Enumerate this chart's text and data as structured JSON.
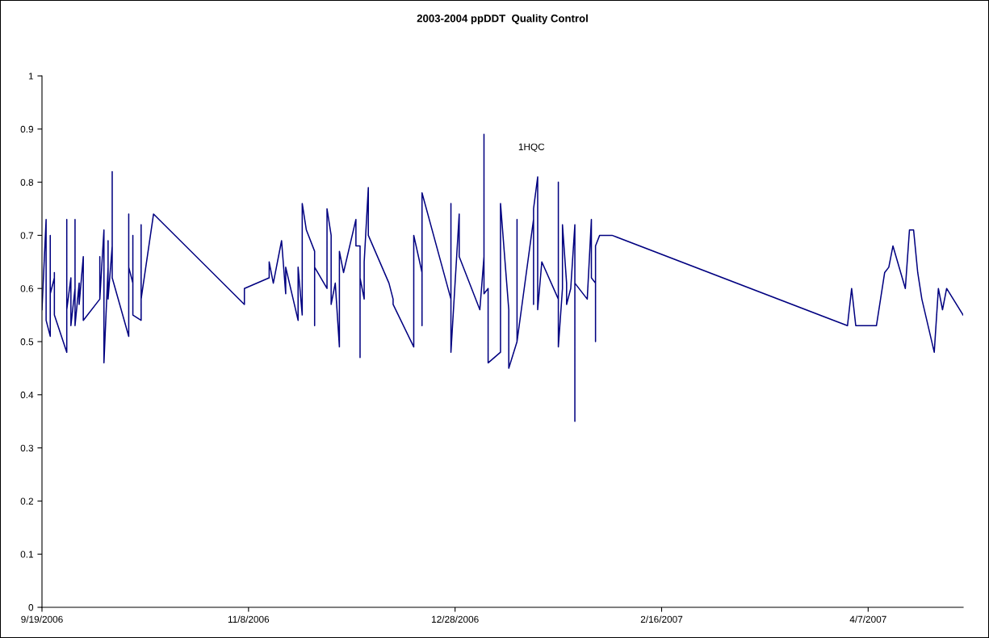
{
  "chart_data": {
    "type": "line",
    "title": "2003-2004 ppDDT  Quality Control",
    "x": [
      "2006-09-19",
      "2006-09-20",
      "2006-09-20",
      "2006-09-21",
      "2006-09-21",
      "2006-09-21",
      "2006-09-22",
      "2006-09-22",
      "2006-09-22",
      "2006-09-25",
      "2006-09-25",
      "2006-09-25",
      "2006-09-26",
      "2006-09-26",
      "2006-09-27",
      "2006-09-27",
      "2006-09-27",
      "2006-09-28",
      "2006-09-28",
      "2006-09-29",
      "2006-09-29",
      "2006-10-03",
      "2006-10-03",
      "2006-10-03",
      "2006-10-04",
      "2006-10-04",
      "2006-10-05",
      "2006-10-05",
      "2006-10-05",
      "2006-10-06",
      "2006-10-06",
      "2006-10-06",
      "2006-10-10",
      "2006-10-10",
      "2006-10-10",
      "2006-10-11",
      "2006-10-11",
      "2006-10-11",
      "2006-10-13",
      "2006-10-13",
      "2006-10-13",
      "2006-10-16",
      "2006-11-07",
      "2006-11-07",
      "2006-11-13",
      "2006-11-13",
      "2006-11-14",
      "2006-11-16",
      "2006-11-17",
      "2006-11-17",
      "2006-11-20",
      "2006-11-20",
      "2006-11-21",
      "2006-11-21",
      "2006-11-22",
      "2006-11-24",
      "2006-11-24",
      "2006-11-24",
      "2006-11-27",
      "2006-11-27",
      "2006-11-28",
      "2006-11-28",
      "2006-11-29",
      "2006-11-30",
      "2006-11-30",
      "2006-12-01",
      "2006-12-04",
      "2006-12-04",
      "2006-12-05",
      "2006-12-05",
      "2006-12-05",
      "2006-12-06",
      "2006-12-06",
      "2006-12-07",
      "2006-12-07",
      "2006-12-12",
      "2006-12-13",
      "2006-12-13",
      "2006-12-18",
      "2006-12-18",
      "2006-12-20",
      "2006-12-20",
      "2006-12-20",
      "2006-12-27",
      "2006-12-27",
      "2006-12-27",
      "2006-12-29",
      "2006-12-29",
      "2007-01-03",
      "2007-01-04",
      "2007-01-04",
      "2007-01-04",
      "2007-01-05",
      "2007-01-05",
      "2007-01-08",
      "2007-01-08",
      "2007-01-10",
      "2007-01-10",
      "2007-01-12",
      "2007-01-12",
      "2007-01-12",
      "2007-01-16",
      "2007-01-16",
      "2007-01-16",
      "2007-01-17",
      "2007-01-17",
      "2007-01-18",
      "2007-01-22",
      "2007-01-22",
      "2007-01-22",
      "2007-01-23",
      "2007-01-23",
      "2007-01-24",
      "2007-01-24",
      "2007-01-25",
      "2007-01-26",
      "2007-01-26",
      "2007-01-26",
      "2007-01-29",
      "2007-01-30",
      "2007-01-30",
      "2007-01-31",
      "2007-01-31",
      "2007-01-31",
      "2007-02-01",
      "2007-02-04",
      "2007-04-02",
      "2007-04-03",
      "2007-04-04",
      "2007-04-09",
      "2007-04-10",
      "2007-04-11",
      "2007-04-12",
      "2007-04-13",
      "2007-04-16",
      "2007-04-17",
      "2007-04-18",
      "2007-04-19",
      "2007-04-20",
      "2007-04-23",
      "2007-04-24",
      "2007-04-25",
      "2007-04-26",
      "2007-04-30"
    ],
    "series": [
      {
        "color": "#000080",
        "values": [
          0.56,
          0.73,
          0.54,
          0.51,
          0.7,
          0.59,
          0.62,
          0.63,
          0.55,
          0.48,
          0.73,
          0.56,
          0.62,
          0.53,
          0.6,
          0.73,
          0.53,
          0.61,
          0.57,
          0.66,
          0.54,
          0.58,
          0.66,
          0.58,
          0.71,
          0.46,
          0.64,
          0.69,
          0.58,
          0.68,
          0.82,
          0.62,
          0.51,
          0.74,
          0.64,
          0.61,
          0.7,
          0.55,
          0.54,
          0.72,
          0.58,
          0.74,
          0.57,
          0.6,
          0.62,
          0.65,
          0.61,
          0.69,
          0.59,
          0.64,
          0.54,
          0.64,
          0.55,
          0.76,
          0.71,
          0.67,
          0.53,
          0.64,
          0.6,
          0.75,
          0.7,
          0.57,
          0.61,
          0.49,
          0.67,
          0.63,
          0.73,
          0.68,
          0.68,
          0.47,
          0.62,
          0.58,
          0.65,
          0.79,
          0.7,
          0.61,
          0.58,
          0.57,
          0.49,
          0.7,
          0.63,
          0.53,
          0.78,
          0.58,
          0.76,
          0.48,
          0.74,
          0.66,
          0.56,
          0.66,
          0.89,
          0.59,
          0.6,
          0.46,
          0.48,
          0.76,
          0.56,
          0.45,
          0.5,
          0.73,
          0.5,
          0.73,
          0.57,
          0.75,
          0.81,
          0.56,
          0.65,
          0.58,
          0.8,
          0.49,
          0.6,
          0.72,
          0.61,
          0.57,
          0.6,
          0.72,
          0.35,
          0.61,
          0.58,
          0.73,
          0.62,
          0.61,
          0.5,
          0.68,
          0.7,
          0.7,
          0.53,
          0.6,
          0.53,
          0.53,
          0.58,
          0.63,
          0.64,
          0.68,
          0.6,
          0.71,
          0.71,
          0.63,
          0.58,
          0.48,
          0.6,
          0.56,
          0.6,
          0.55
        ]
      }
    ],
    "xlim": [
      "2006-09-19",
      "2007-04-30"
    ],
    "xticks": [
      {
        "value": "2006-09-19",
        "label": "9/19/2006"
      },
      {
        "value": "2006-11-08",
        "label": "11/8/2006"
      },
      {
        "value": "2006-12-28",
        "label": "12/28/2006"
      },
      {
        "value": "2007-02-16",
        "label": "2/16/2007"
      },
      {
        "value": "2007-04-07",
        "label": "4/7/2007"
      }
    ],
    "ylim": [
      0,
      1
    ],
    "yticks": [
      0,
      0.1,
      0.2,
      0.3,
      0.4,
      0.5,
      0.6,
      0.7,
      0.8,
      0.9,
      1
    ],
    "annotations": [
      "1HQC"
    ],
    "grid": false,
    "legend": false,
    "marker": "none",
    "line_style": "solid"
  }
}
